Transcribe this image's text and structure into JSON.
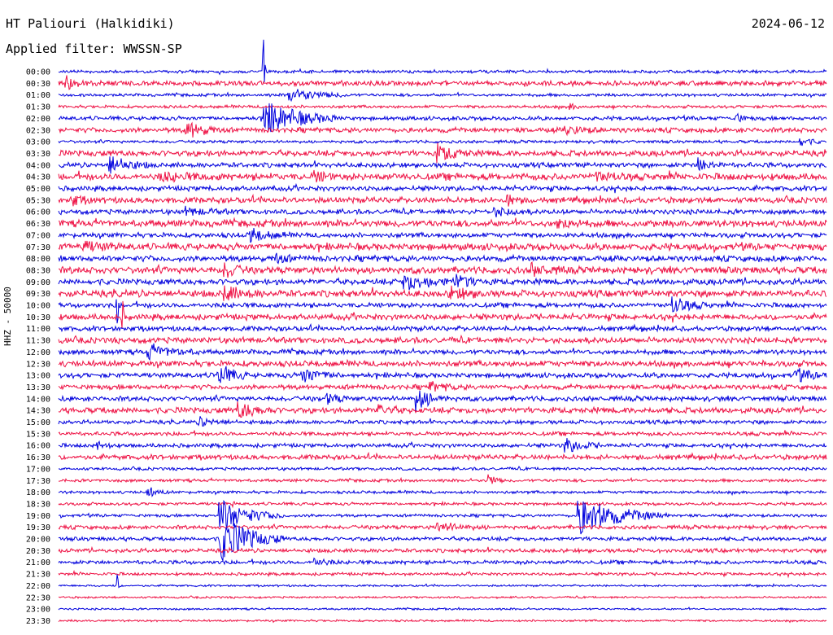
{
  "header": {
    "station": "HT Paliouri (Halkidiki)",
    "date": "2024-06-12",
    "filter": "Applied filter: WWSSN-SP"
  },
  "channel_label": "HHZ - 50000",
  "colors": {
    "blue": "#0000dd",
    "red": "#ee1144"
  },
  "chart_data": {
    "type": "line",
    "subtype": "helicorder",
    "title": "HT Paliouri (Halkidiki)",
    "ylabel": "HHZ - 50000",
    "row_interval_minutes": 30,
    "tick_labels": [
      "00:00",
      "00:30",
      "01:00",
      "01:30",
      "02:00",
      "02:30",
      "03:00",
      "03:30",
      "04:00",
      "04:30",
      "05:00",
      "05:30",
      "06:00",
      "06:30",
      "07:00",
      "07:30",
      "08:00",
      "08:30",
      "09:00",
      "09:30",
      "10:00",
      "10:30",
      "11:00",
      "11:30",
      "12:00",
      "12:30",
      "13:00",
      "13:30",
      "14:00",
      "14:30",
      "15:00",
      "15:30",
      "16:00",
      "16:30",
      "17:00",
      "17:30",
      "18:00",
      "18:30",
      "19:00",
      "19:30",
      "20:00",
      "20:30",
      "21:00",
      "21:30",
      "22:00",
      "22:30",
      "23:00",
      "23:30"
    ],
    "row_colors": [
      "blue",
      "red"
    ],
    "noise_level": [
      1.5,
      2.5,
      1.5,
      1.5,
      2.0,
      2.5,
      1.5,
      3.0,
      2.5,
      3.5,
      2.5,
      3.0,
      2.5,
      3.5,
      2.5,
      3.5,
      3.0,
      3.5,
      3.0,
      3.5,
      2.5,
      3.0,
      2.5,
      3.0,
      2.5,
      3.0,
      2.5,
      2.5,
      2.5,
      3.0,
      2.0,
      2.0,
      2.0,
      2.5,
      1.5,
      1.5,
      1.5,
      1.5,
      1.5,
      2.0,
      2.0,
      2.0,
      2.0,
      1.5,
      1.0,
      1.0,
      1.0,
      1.0
    ],
    "events": [
      {
        "row": 1,
        "minute": 0.3,
        "amp": 8,
        "dur": 0.8
      },
      {
        "row": 0,
        "minute": 8.0,
        "amp": 50,
        "dur": 0.3
      },
      {
        "row": 2,
        "minute": 9.0,
        "amp": 8,
        "dur": 2.5
      },
      {
        "row": 3,
        "minute": 20.0,
        "amp": 4,
        "dur": 0.5
      },
      {
        "row": 4,
        "minute": 8.0,
        "amp": 22,
        "dur": 3.0
      },
      {
        "row": 4,
        "minute": 26.5,
        "amp": 5,
        "dur": 0.6
      },
      {
        "row": 5,
        "minute": 5.0,
        "amp": 10,
        "dur": 1.5
      },
      {
        "row": 5,
        "minute": 19.8,
        "amp": 5,
        "dur": 1.5
      },
      {
        "row": 6,
        "minute": 29.0,
        "amp": 5,
        "dur": 1.0
      },
      {
        "row": 7,
        "minute": 14.8,
        "amp": 9,
        "dur": 1.5
      },
      {
        "row": 8,
        "minute": 2.0,
        "amp": 12,
        "dur": 1.5
      },
      {
        "row": 8,
        "minute": 25.0,
        "amp": 8,
        "dur": 1.0
      },
      {
        "row": 9,
        "minute": 4.0,
        "amp": 4,
        "dur": 2.5
      },
      {
        "row": 9,
        "minute": 10.0,
        "amp": 6,
        "dur": 1.0
      },
      {
        "row": 9,
        "minute": 21.0,
        "amp": 5,
        "dur": 1.5
      },
      {
        "row": 11,
        "minute": 17.5,
        "amp": 9,
        "dur": 0.6
      },
      {
        "row": 11,
        "minute": 0.5,
        "amp": 6,
        "dur": 1.0
      },
      {
        "row": 12,
        "minute": 5.0,
        "amp": 4,
        "dur": 2.0
      },
      {
        "row": 12,
        "minute": 17.0,
        "amp": 5,
        "dur": 1.5
      },
      {
        "row": 13,
        "minute": 19.5,
        "amp": 5,
        "dur": 1.5
      },
      {
        "row": 14,
        "minute": 7.5,
        "amp": 8,
        "dur": 1.5
      },
      {
        "row": 15,
        "minute": 1.0,
        "amp": 5,
        "dur": 1.5
      },
      {
        "row": 16,
        "minute": 8.5,
        "amp": 6,
        "dur": 0.8
      },
      {
        "row": 17,
        "minute": 6.5,
        "amp": 9,
        "dur": 1.0
      },
      {
        "row": 17,
        "minute": 18.5,
        "amp": 6,
        "dur": 1.5
      },
      {
        "row": 18,
        "minute": 13.5,
        "amp": 9,
        "dur": 2.5
      },
      {
        "row": 18,
        "minute": 15.5,
        "amp": 7,
        "dur": 1.5
      },
      {
        "row": 19,
        "minute": 6.5,
        "amp": 8,
        "dur": 1.5
      },
      {
        "row": 19,
        "minute": 15.3,
        "amp": 7,
        "dur": 1.5
      },
      {
        "row": 20,
        "minute": 24.0,
        "amp": 9,
        "dur": 1.5
      },
      {
        "row": 24,
        "minute": 3.5,
        "amp": 8,
        "dur": 2.0
      },
      {
        "row": 21,
        "minute": 2.5,
        "amp": 28,
        "dur": 0.2
      },
      {
        "row": 26,
        "minute": 6.2,
        "amp": 16,
        "dur": 1.2
      },
      {
        "row": 26,
        "minute": 9.5,
        "amp": 9,
        "dur": 1.5
      },
      {
        "row": 26,
        "minute": 28.8,
        "amp": 7,
        "dur": 1.5
      },
      {
        "row": 27,
        "minute": 14.5,
        "amp": 5,
        "dur": 1.5
      },
      {
        "row": 28,
        "minute": 14.0,
        "amp": 14,
        "dur": 1.2
      },
      {
        "row": 28,
        "minute": 10.5,
        "amp": 6,
        "dur": 1.0
      },
      {
        "row": 29,
        "minute": 7.0,
        "amp": 10,
        "dur": 1.5
      },
      {
        "row": 29,
        "minute": 12.5,
        "amp": 6,
        "dur": 1.0
      },
      {
        "row": 30,
        "minute": 5.5,
        "amp": 5,
        "dur": 1.5
      },
      {
        "row": 32,
        "minute": 1.5,
        "amp": 5,
        "dur": 0.8
      },
      {
        "row": 32,
        "minute": 19.8,
        "amp": 9,
        "dur": 1.5
      },
      {
        "row": 35,
        "minute": 16.8,
        "amp": 8,
        "dur": 0.6
      },
      {
        "row": 36,
        "minute": 3.5,
        "amp": 6,
        "dur": 0.8
      },
      {
        "row": 37,
        "minute": 6.8,
        "amp": 6,
        "dur": 0.3
      },
      {
        "row": 38,
        "minute": 6.3,
        "amp": 20,
        "dur": 2.5
      },
      {
        "row": 38,
        "minute": 20.3,
        "amp": 24,
        "dur": 3.5
      },
      {
        "row": 39,
        "minute": 14.8,
        "amp": 6,
        "dur": 2.0
      },
      {
        "row": 40,
        "minute": 6.3,
        "amp": 30,
        "dur": 2.5
      },
      {
        "row": 42,
        "minute": 10.0,
        "amp": 5,
        "dur": 1.0
      },
      {
        "row": 20,
        "minute": 2.3,
        "amp": 60,
        "dur": 0.15
      },
      {
        "row": 44,
        "minute": 2.3,
        "amp": 40,
        "dur": 0.15
      }
    ]
  }
}
